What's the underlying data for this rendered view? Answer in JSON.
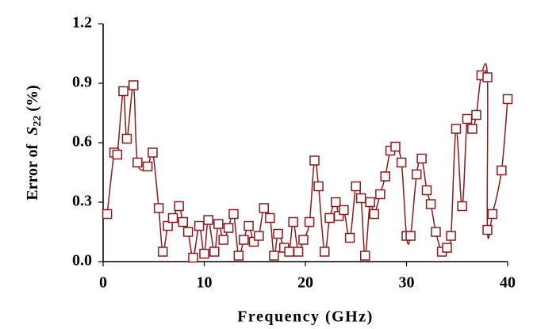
{
  "chart_data": {
    "type": "line",
    "xlabel": "Frequency (GHz)",
    "ylabel_parts": [
      "Error of ",
      "S",
      "22",
      " (%)"
    ],
    "xlim": [
      0,
      40
    ],
    "ylim": [
      0,
      1.2
    ],
    "xticks": [
      0,
      10,
      20,
      30,
      40
    ],
    "yticks": [
      {
        "value": 0,
        "label": "0.0"
      },
      0.3,
      0.6,
      0.9,
      1.2
    ],
    "grid": false,
    "color": "#8b1a1a",
    "x": [
      0.4,
      1.1,
      1.4,
      2.0,
      2.35,
      3.0,
      3.4,
      4.4,
      4.9,
      5.5,
      5.9,
      6.4,
      6.9,
      7.5,
      7.9,
      8.4,
      8.9,
      9.5,
      10.0,
      10.4,
      11.0,
      11.4,
      11.9,
      12.4,
      12.9,
      13.4,
      13.9,
      14.4,
      14.9,
      15.4,
      15.9,
      16.5,
      16.9,
      17.3,
      17.9,
      18.4,
      18.8,
      19.3,
      19.8,
      20.4,
      20.9,
      21.3,
      21.9,
      22.4,
      23.0,
      23.3,
      23.8,
      24.4,
      25.0,
      25.5,
      25.9,
      26.4,
      26.8,
      27.4,
      27.9,
      28.4,
      28.9,
      29.5,
      30.0,
      30.4,
      31.0,
      31.5,
      32.0,
      32.4,
      32.9,
      33.5,
      34.0,
      34.4,
      34.9,
      35.5,
      36.0,
      36.5,
      36.9,
      37.4,
      38.0,
      38.0,
      38.5,
      39.4,
      40.0
    ],
    "values": [
      0.24,
      0.55,
      0.54,
      0.86,
      0.62,
      0.89,
      0.5,
      0.48,
      0.55,
      0.27,
      0.05,
      0.18,
      0.22,
      0.28,
      0.2,
      0.15,
      0.02,
      0.18,
      0.04,
      0.21,
      0.05,
      0.19,
      0.11,
      0.17,
      0.24,
      0.03,
      0.11,
      0.18,
      0.1,
      0.13,
      0.27,
      0.22,
      0.03,
      0.14,
      0.07,
      0.05,
      0.2,
      0.05,
      0.11,
      0.2,
      0.51,
      0.38,
      0.05,
      0.22,
      0.3,
      0.23,
      0.26,
      0.12,
      0.38,
      0.32,
      0.03,
      0.3,
      0.24,
      0.34,
      0.43,
      0.56,
      0.58,
      0.5,
      0.13,
      0.13,
      0.44,
      0.52,
      0.36,
      0.29,
      0.15,
      0.05,
      0.07,
      0.13,
      0.67,
      0.28,
      0.72,
      0.67,
      0.74,
      0.94,
      0.93,
      0.16,
      0.24,
      0.46,
      0.82
    ]
  }
}
